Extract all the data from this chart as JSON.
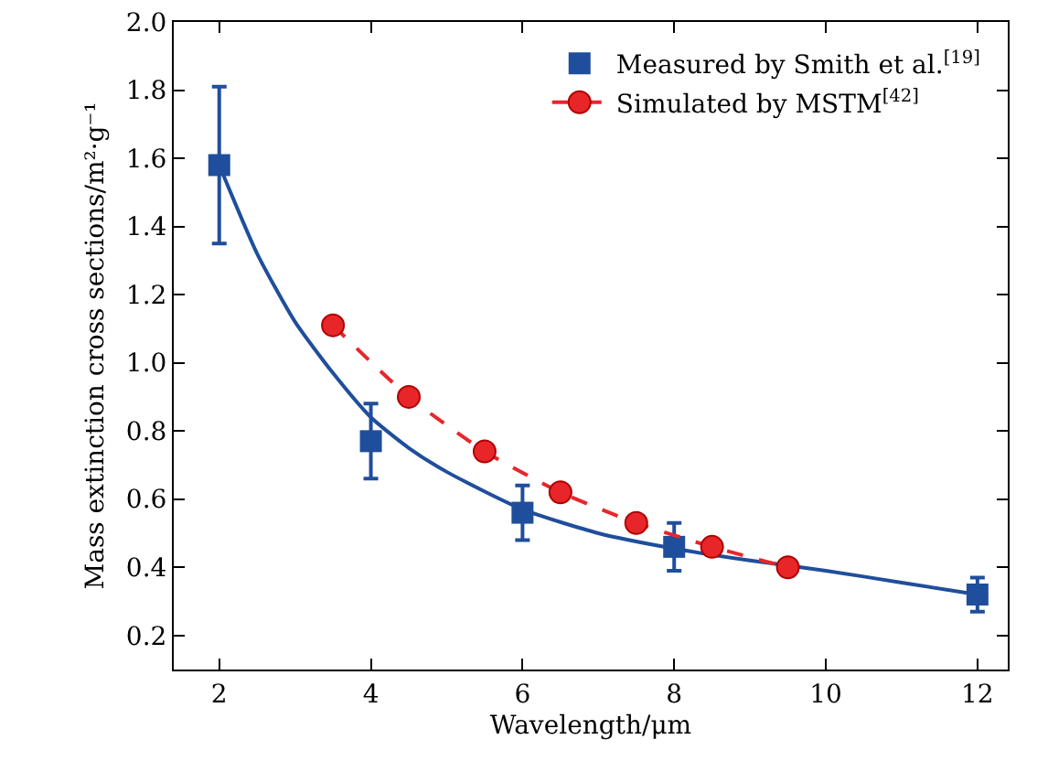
{
  "chart_data": {
    "type": "scatter",
    "xlabel": "Wavelength/μm",
    "ylabel": "Mass extinction cross sections/m²·g⁻¹",
    "xlim": [
      1.4,
      12.4
    ],
    "xticks": [
      2,
      4,
      6,
      8,
      10,
      12
    ],
    "ylim": [
      0.1,
      2.0
    ],
    "yticks": [
      0.2,
      0.4,
      0.6,
      0.8,
      {
        "value": 1,
        "label": "1.0"
      },
      1.2,
      1.4,
      1.6,
      1.8,
      {
        "value": 2,
        "label": "2.0"
      }
    ],
    "grid": false,
    "legend": "top right",
    "series": [
      {
        "name": "Measured by Smith et al.$^{[19]}$",
        "type": "scatter",
        "marker": "square",
        "color": "#1f4e9c",
        "x": [
          2,
          4,
          6,
          8,
          12
        ],
        "values": [
          1.58,
          0.77,
          0.56,
          0.46,
          0.32
        ],
        "errors": [
          [
            1.35,
            1.81
          ],
          [
            0.66,
            0.88
          ],
          [
            0.48,
            0.64
          ],
          [
            0.39,
            0.53
          ],
          [
            0.27,
            0.37
          ]
        ]
      },
      {
        "type": "line",
        "marker": "none",
        "line_style": "solid",
        "color": "#1f4e9c",
        "x": [
          2,
          2.5,
          3,
          3.5,
          4,
          4.5,
          5,
          6,
          7,
          8,
          9,
          10,
          11,
          12
        ],
        "values": [
          1.58,
          1.32,
          1.12,
          0.97,
          0.84,
          0.75,
          0.68,
          0.57,
          0.5,
          0.455,
          0.42,
          0.39,
          0.355,
          0.32
        ]
      },
      {
        "name": "Simulated by MSTM$^{[42]}$",
        "type": "line",
        "marker": "circle",
        "line_style": "dashed",
        "color": "#e8262a",
        "x": [
          3.5,
          4.5,
          5.5,
          6.5,
          7.5,
          8.5,
          9.5
        ],
        "values": [
          1.11,
          0.9,
          0.74,
          0.62,
          0.53,
          0.46,
          0.4
        ]
      }
    ]
  }
}
